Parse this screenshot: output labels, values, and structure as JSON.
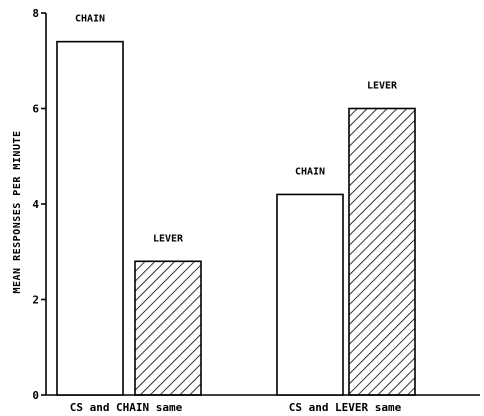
{
  "chart_data": {
    "type": "bar",
    "ylabel": "MEAN RESPONSES PER MINUTE",
    "xlabel": "",
    "ylim": [
      0,
      8
    ],
    "yticks": [
      0,
      2,
      4,
      6,
      8
    ],
    "groups": [
      {
        "label": "CS and CHAIN same",
        "bars": [
          {
            "label": "CHAIN",
            "value": 7.4,
            "fill": "open"
          },
          {
            "label": "LEVER",
            "value": 2.8,
            "fill": "hatched"
          }
        ]
      },
      {
        "label": "CS and LEVER same",
        "bars": [
          {
            "label": "CHAIN",
            "value": 4.2,
            "fill": "open"
          },
          {
            "label": "LEVER",
            "value": 6.0,
            "fill": "hatched"
          }
        ]
      }
    ],
    "grid": false,
    "legend": "none"
  },
  "colors": {
    "ink": "#000000",
    "background": "#ffffff"
  }
}
